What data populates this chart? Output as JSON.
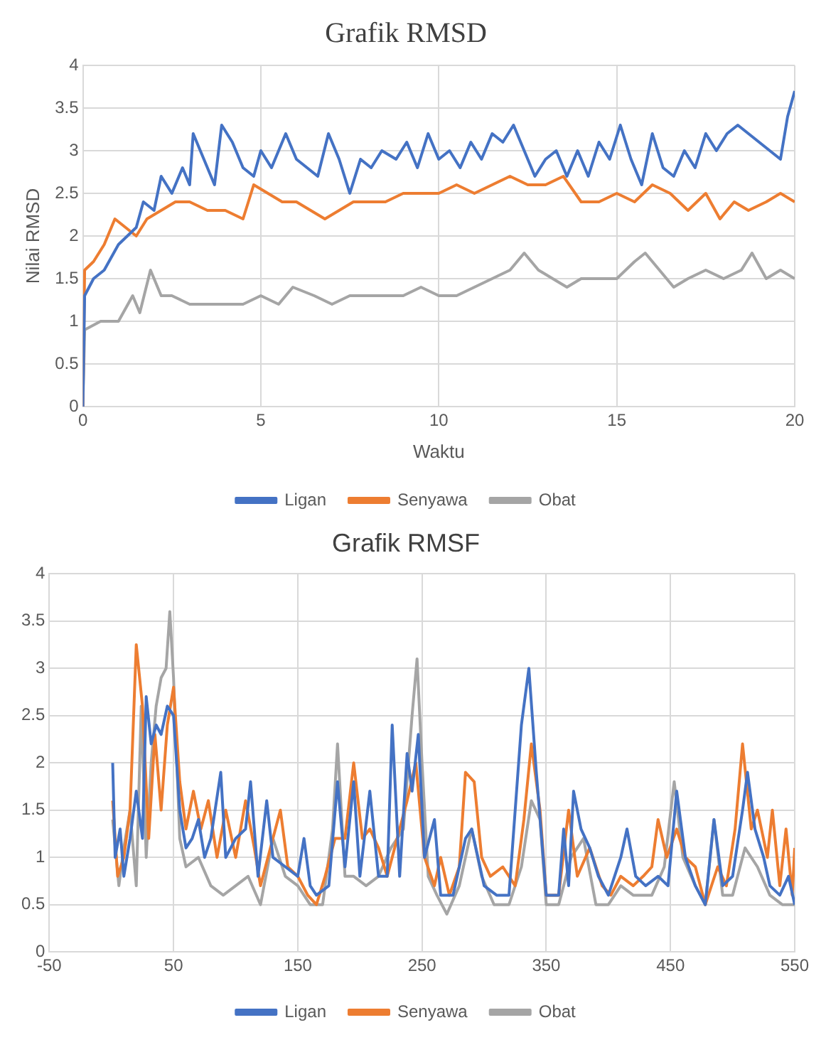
{
  "chart_data": [
    {
      "type": "line",
      "title": "Grafik RMSD",
      "xlabel": "Waktu",
      "ylabel": "Nilai RMSD",
      "xlim": [
        0,
        20
      ],
      "xticks": [
        0,
        5,
        10,
        15,
        20
      ],
      "ylim": [
        0,
        4
      ],
      "yticks": [
        0,
        0.5,
        1,
        1.5,
        2,
        2.5,
        3,
        3.5,
        4
      ],
      "grid": true,
      "legend": "bottom",
      "series": [
        {
          "name": "Ligan",
          "color": "#4472c4",
          "x": [
            0,
            0.05,
            0.3,
            0.6,
            1.0,
            1.5,
            1.7,
            2.0,
            2.2,
            2.5,
            2.8,
            3.0,
            3.1,
            3.4,
            3.7,
            3.9,
            4.2,
            4.5,
            4.8,
            5.0,
            5.3,
            5.7,
            6.0,
            6.3,
            6.6,
            6.9,
            7.2,
            7.5,
            7.8,
            8.1,
            8.4,
            8.8,
            9.1,
            9.4,
            9.7,
            10.0,
            10.3,
            10.6,
            10.9,
            11.2,
            11.5,
            11.8,
            12.1,
            12.4,
            12.7,
            13.0,
            13.3,
            13.6,
            13.9,
            14.2,
            14.5,
            14.8,
            15.1,
            15.4,
            15.7,
            16.0,
            16.3,
            16.6,
            16.9,
            17.2,
            17.5,
            17.8,
            18.1,
            18.4,
            18.7,
            19.0,
            19.3,
            19.6,
            19.8,
            20.0
          ],
          "values": [
            0,
            1.3,
            1.5,
            1.6,
            1.9,
            2.1,
            2.4,
            2.3,
            2.7,
            2.5,
            2.8,
            2.6,
            3.2,
            2.9,
            2.6,
            3.3,
            3.1,
            2.8,
            2.7,
            3.0,
            2.8,
            3.2,
            2.9,
            2.8,
            2.7,
            3.2,
            2.9,
            2.5,
            2.9,
            2.8,
            3.0,
            2.9,
            3.1,
            2.8,
            3.2,
            2.9,
            3.0,
            2.8,
            3.1,
            2.9,
            3.2,
            3.1,
            3.3,
            3.0,
            2.7,
            2.9,
            3.0,
            2.7,
            3.0,
            2.7,
            3.1,
            2.9,
            3.3,
            2.9,
            2.6,
            3.2,
            2.8,
            2.7,
            3.0,
            2.8,
            3.2,
            3.0,
            3.2,
            3.3,
            3.2,
            3.1,
            3.0,
            2.9,
            3.4,
            3.7
          ]
        },
        {
          "name": "Senyawa",
          "color": "#ed7d31",
          "x": [
            0,
            0.05,
            0.3,
            0.6,
            0.9,
            1.2,
            1.5,
            1.8,
            2.2,
            2.6,
            3.0,
            3.5,
            4.0,
            4.5,
            4.8,
            5.2,
            5.6,
            6.0,
            6.4,
            6.8,
            7.2,
            7.6,
            8.0,
            8.5,
            9.0,
            9.5,
            10.0,
            10.5,
            11.0,
            11.5,
            12.0,
            12.5,
            13.0,
            13.5,
            14.0,
            14.5,
            15.0,
            15.5,
            16.0,
            16.5,
            17.0,
            17.5,
            17.9,
            18.3,
            18.7,
            19.2,
            19.6,
            20.0
          ],
          "values": [
            0,
            1.6,
            1.7,
            1.9,
            2.2,
            2.1,
            2.0,
            2.2,
            2.3,
            2.4,
            2.4,
            2.3,
            2.3,
            2.2,
            2.6,
            2.5,
            2.4,
            2.4,
            2.3,
            2.2,
            2.3,
            2.4,
            2.4,
            2.4,
            2.5,
            2.5,
            2.5,
            2.6,
            2.5,
            2.6,
            2.7,
            2.6,
            2.6,
            2.7,
            2.4,
            2.4,
            2.5,
            2.4,
            2.6,
            2.5,
            2.3,
            2.5,
            2.2,
            2.4,
            2.3,
            2.4,
            2.5,
            2.4
          ]
        },
        {
          "name": "Obat",
          "color": "#a5a5a5",
          "x": [
            0,
            0.05,
            0.5,
            1.0,
            1.4,
            1.6,
            1.9,
            2.2,
            2.5,
            3.0,
            3.5,
            4.0,
            4.5,
            5.0,
            5.5,
            5.9,
            6.5,
            7.0,
            7.5,
            8.0,
            8.5,
            9.0,
            9.5,
            10.0,
            10.5,
            11.0,
            11.5,
            12.0,
            12.4,
            12.8,
            13.2,
            13.6,
            14.0,
            14.5,
            15.0,
            15.5,
            15.8,
            16.2,
            16.6,
            17.0,
            17.5,
            18.0,
            18.5,
            18.8,
            19.2,
            19.6,
            20.0
          ],
          "values": [
            0,
            0.9,
            1.0,
            1.0,
            1.3,
            1.1,
            1.6,
            1.3,
            1.3,
            1.2,
            1.2,
            1.2,
            1.2,
            1.3,
            1.2,
            1.4,
            1.3,
            1.2,
            1.3,
            1.3,
            1.3,
            1.3,
            1.4,
            1.3,
            1.3,
            1.4,
            1.5,
            1.6,
            1.8,
            1.6,
            1.5,
            1.4,
            1.5,
            1.5,
            1.5,
            1.7,
            1.8,
            1.6,
            1.4,
            1.5,
            1.6,
            1.5,
            1.6,
            1.8,
            1.5,
            1.6,
            1.5
          ]
        }
      ]
    },
    {
      "type": "line",
      "title": "Grafik RMSF",
      "xlim": [
        -50,
        550
      ],
      "xticks": [
        -50,
        50,
        150,
        250,
        350,
        450,
        550
      ],
      "ylim": [
        0,
        4
      ],
      "yticks": [
        0,
        0.5,
        1,
        1.5,
        2,
        2.5,
        3,
        3.5,
        4
      ],
      "grid": true,
      "legend": "bottom",
      "series": [
        {
          "name": "Ligan",
          "color": "#4472c4",
          "x": [
            1,
            3,
            7,
            10,
            15,
            20,
            25,
            28,
            32,
            36,
            40,
            45,
            50,
            55,
            60,
            65,
            70,
            75,
            80,
            88,
            92,
            100,
            108,
            112,
            118,
            125,
            130,
            140,
            150,
            155,
            160,
            165,
            175,
            182,
            188,
            195,
            200,
            208,
            215,
            222,
            226,
            232,
            238,
            242,
            247,
            252,
            260,
            265,
            275,
            285,
            290,
            300,
            310,
            320,
            330,
            336,
            342,
            350,
            360,
            364,
            368,
            372,
            378,
            385,
            392,
            400,
            410,
            415,
            422,
            430,
            440,
            448,
            455,
            462,
            470,
            478,
            485,
            492,
            500,
            508,
            512,
            518,
            525,
            530,
            538,
            545,
            550
          ],
          "values": [
            2.0,
            1.0,
            1.3,
            0.8,
            1.2,
            1.7,
            1.2,
            2.7,
            2.2,
            2.4,
            2.3,
            2.6,
            2.5,
            1.5,
            1.1,
            1.2,
            1.4,
            1.0,
            1.2,
            1.9,
            1.0,
            1.2,
            1.3,
            1.8,
            0.8,
            1.6,
            1.0,
            0.9,
            0.8,
            1.2,
            0.7,
            0.6,
            0.7,
            1.8,
            0.9,
            1.8,
            0.8,
            1.7,
            0.8,
            0.8,
            2.4,
            0.8,
            2.1,
            1.7,
            2.3,
            1.0,
            1.4,
            0.6,
            0.6,
            1.2,
            1.3,
            0.7,
            0.6,
            0.6,
            2.4,
            3.0,
            1.9,
            0.6,
            0.6,
            1.3,
            0.7,
            1.7,
            1.3,
            1.1,
            0.8,
            0.6,
            1.0,
            1.3,
            0.8,
            0.7,
            0.8,
            0.7,
            1.7,
            1.0,
            0.7,
            0.5,
            1.4,
            0.7,
            0.8,
            1.5,
            1.9,
            1.3,
            1.0,
            0.7,
            0.6,
            0.8,
            0.5
          ]
        },
        {
          "name": "Senyawa",
          "color": "#ed7d31",
          "x": [
            1,
            5,
            10,
            15,
            20,
            25,
            30,
            35,
            40,
            45,
            50,
            55,
            60,
            66,
            72,
            78,
            85,
            92,
            100,
            108,
            115,
            120,
            130,
            136,
            142,
            150,
            158,
            165,
            172,
            180,
            188,
            195,
            202,
            208,
            215,
            222,
            230,
            238,
            245,
            252,
            260,
            265,
            272,
            280,
            285,
            292,
            298,
            305,
            315,
            325,
            332,
            338,
            345,
            350,
            360,
            368,
            375,
            385,
            395,
            402,
            410,
            420,
            428,
            435,
            440,
            447,
            455,
            462,
            470,
            478,
            488,
            495,
            502,
            508,
            515,
            520,
            528,
            532,
            538,
            543,
            548,
            550
          ],
          "values": [
            1.6,
            0.8,
            1.0,
            1.5,
            3.25,
            2.6,
            1.2,
            2.3,
            1.5,
            2.4,
            2.8,
            1.8,
            1.3,
            1.7,
            1.3,
            1.6,
            1.0,
            1.5,
            1.0,
            1.6,
            1.1,
            0.7,
            1.2,
            1.5,
            0.9,
            0.8,
            0.6,
            0.5,
            0.8,
            1.2,
            1.2,
            2.0,
            1.2,
            1.3,
            1.1,
            0.8,
            1.2,
            1.6,
            2.0,
            1.0,
            0.7,
            1.0,
            0.6,
            0.9,
            1.9,
            1.8,
            1.0,
            0.8,
            0.9,
            0.7,
            1.4,
            2.2,
            1.5,
            0.6,
            0.6,
            1.5,
            0.8,
            1.1,
            0.7,
            0.6,
            0.8,
            0.7,
            0.8,
            0.9,
            1.4,
            1.0,
            1.3,
            1.0,
            0.9,
            0.5,
            0.9,
            0.7,
            1.3,
            2.2,
            1.3,
            1.5,
            1.0,
            1.5,
            0.7,
            1.3,
            0.6,
            1.1
          ]
        },
        {
          "name": "Obat",
          "color": "#a5a5a5",
          "x": [
            1,
            6,
            10,
            15,
            20,
            24,
            28,
            32,
            36,
            40,
            44,
            47,
            50,
            55,
            60,
            70,
            80,
            90,
            100,
            110,
            120,
            130,
            140,
            150,
            160,
            170,
            178,
            182,
            188,
            195,
            205,
            215,
            225,
            235,
            242,
            246,
            250,
            255,
            262,
            270,
            280,
            290,
            298,
            308,
            320,
            330,
            338,
            345,
            350,
            360,
            370,
            380,
            390,
            400,
            410,
            420,
            435,
            445,
            453,
            460,
            470,
            478,
            485,
            492,
            500,
            510,
            520,
            530,
            540,
            550
          ],
          "values": [
            1.4,
            0.7,
            1.1,
            1.5,
            0.7,
            2.6,
            1.0,
            2.0,
            2.6,
            2.9,
            3.0,
            3.6,
            2.9,
            1.2,
            0.9,
            1.0,
            0.7,
            0.6,
            0.7,
            0.8,
            0.5,
            1.2,
            0.8,
            0.7,
            0.5,
            0.5,
            1.3,
            2.2,
            0.8,
            0.8,
            0.7,
            0.8,
            1.1,
            1.3,
            2.5,
            3.1,
            2.0,
            0.8,
            0.6,
            0.4,
            0.7,
            1.3,
            0.8,
            0.5,
            0.5,
            0.9,
            1.6,
            1.4,
            0.5,
            0.5,
            1.0,
            1.2,
            0.5,
            0.5,
            0.7,
            0.6,
            0.6,
            0.9,
            1.8,
            1.0,
            0.7,
            0.5,
            1.4,
            0.6,
            0.6,
            1.1,
            0.9,
            0.6,
            0.5,
            0.5
          ]
        }
      ]
    }
  ]
}
